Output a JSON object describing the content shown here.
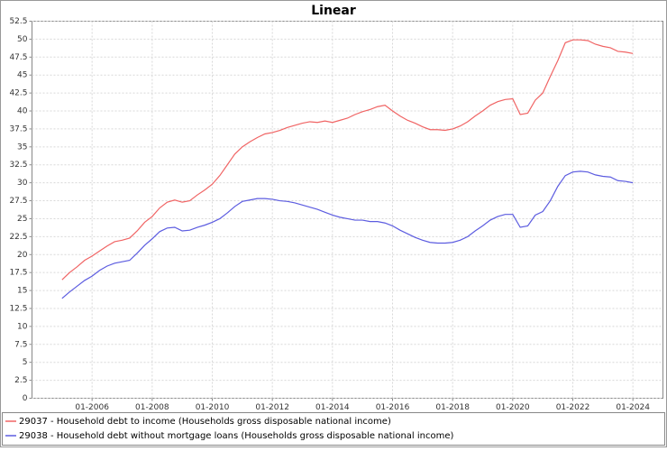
{
  "chart_data": {
    "type": "line",
    "title": "Linear",
    "x": [
      "01-2005",
      "04-2005",
      "07-2005",
      "10-2005",
      "01-2006",
      "04-2006",
      "07-2006",
      "10-2006",
      "01-2007",
      "04-2007",
      "07-2007",
      "10-2007",
      "01-2008",
      "04-2008",
      "07-2008",
      "10-2008",
      "01-2009",
      "04-2009",
      "07-2009",
      "10-2009",
      "01-2010",
      "04-2010",
      "07-2010",
      "10-2010",
      "01-2011",
      "04-2011",
      "07-2011",
      "10-2011",
      "01-2012",
      "04-2012",
      "07-2012",
      "10-2012",
      "01-2013",
      "04-2013",
      "07-2013",
      "10-2013",
      "01-2014",
      "04-2014",
      "07-2014",
      "10-2014",
      "01-2015",
      "04-2015",
      "07-2015",
      "10-2015",
      "01-2016",
      "04-2016",
      "07-2016",
      "10-2016",
      "01-2017",
      "04-2017",
      "07-2017",
      "10-2017",
      "01-2018",
      "04-2018",
      "07-2018",
      "10-2018",
      "01-2019",
      "04-2019",
      "07-2019",
      "10-2019",
      "01-2020",
      "04-2020",
      "07-2020",
      "10-2020",
      "01-2021",
      "04-2021",
      "07-2021",
      "10-2021",
      "01-2022",
      "04-2022",
      "07-2022",
      "10-2022",
      "01-2023",
      "04-2023",
      "07-2023",
      "10-2023",
      "01-2024"
    ],
    "series": [
      {
        "name": "29037 - Household debt to income (Households gross disposable national income)",
        "color": "#f06464",
        "values": [
          16.5,
          17.5,
          18.3,
          19.2,
          19.8,
          20.5,
          21.2,
          21.8,
          22.0,
          22.3,
          23.3,
          24.5,
          25.3,
          26.5,
          27.3,
          27.6,
          27.3,
          27.5,
          28.3,
          29.0,
          29.8,
          31.0,
          32.5,
          34.0,
          35.0,
          35.7,
          36.3,
          36.8,
          37.0,
          37.3,
          37.7,
          38.0,
          38.3,
          38.5,
          38.4,
          38.6,
          38.4,
          38.7,
          39.0,
          39.5,
          39.9,
          40.2,
          40.6,
          40.8,
          40.0,
          39.3,
          38.7,
          38.3,
          37.8,
          37.4,
          37.4,
          37.3,
          37.5,
          37.9,
          38.5,
          39.3,
          40.0,
          40.8,
          41.3,
          41.6,
          41.7,
          39.5,
          39.7,
          41.5,
          42.5,
          44.8,
          47.0,
          49.5,
          49.9,
          49.9,
          49.8,
          49.3,
          49.0,
          48.8,
          48.3,
          48.2,
          48.0
        ]
      },
      {
        "name": "29038 - Household debt without mortgage loans (Households gross disposable national income)",
        "color": "#5c5ce0",
        "values": [
          13.9,
          14.8,
          15.6,
          16.4,
          17.0,
          17.8,
          18.4,
          18.8,
          19.0,
          19.2,
          20.2,
          21.3,
          22.2,
          23.2,
          23.7,
          23.8,
          23.3,
          23.4,
          23.8,
          24.1,
          24.5,
          25.0,
          25.8,
          26.7,
          27.4,
          27.6,
          27.8,
          27.8,
          27.7,
          27.5,
          27.4,
          27.2,
          26.9,
          26.6,
          26.3,
          25.9,
          25.5,
          25.2,
          25.0,
          24.8,
          24.8,
          24.6,
          24.6,
          24.4,
          24.0,
          23.4,
          22.9,
          22.4,
          22.0,
          21.7,
          21.6,
          21.6,
          21.7,
          22.0,
          22.5,
          23.3,
          24.0,
          24.8,
          25.3,
          25.6,
          25.6,
          23.8,
          24.0,
          25.5,
          26.0,
          27.5,
          29.5,
          31.0,
          31.5,
          31.6,
          31.5,
          31.1,
          30.9,
          30.8,
          30.3,
          30.2,
          30.0
        ]
      }
    ],
    "xlim": [
      "01-2004",
      "01-2025"
    ],
    "xticks": [
      "01-2006",
      "01-2008",
      "01-2010",
      "01-2012",
      "01-2014",
      "01-2016",
      "01-2018",
      "01-2020",
      "01-2022",
      "01-2024"
    ],
    "ylim": [
      0,
      52.5
    ],
    "yticks": [
      0,
      2.5,
      5,
      7.5,
      10,
      12.5,
      15,
      17.5,
      20,
      22.5,
      25,
      27.5,
      30,
      32.5,
      35,
      37.5,
      40,
      42.5,
      45,
      47.5,
      50,
      52.5
    ],
    "grid": true
  }
}
